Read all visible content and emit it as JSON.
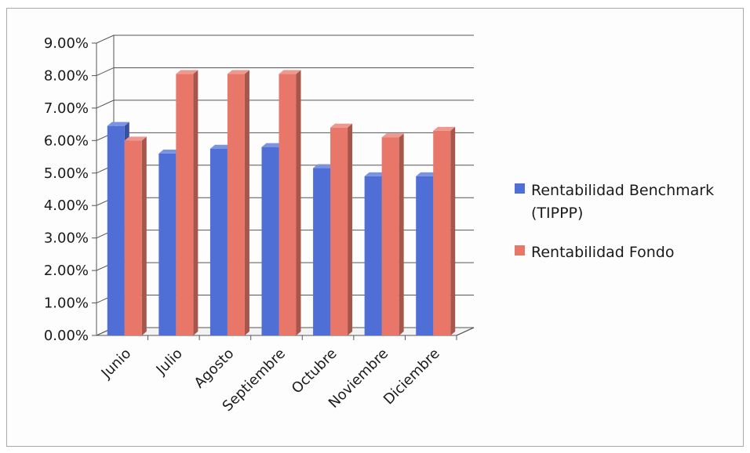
{
  "chart_data": {
    "type": "bar",
    "title": "",
    "xlabel": "",
    "ylabel": "",
    "categories": [
      "Junio",
      "Julio",
      "Agosto",
      "Septiembre",
      "Octubre",
      "Noviembre",
      "Diciembre"
    ],
    "series": [
      {
        "name": "Rentabilidad Benchmark (TIPPP)",
        "legend_lines": [
          "Rentabilidad Benchmark",
          "(TIPPP)"
        ],
        "color": "#4f6fd6",
        "values": [
          0.0645,
          0.056,
          0.0575,
          0.058,
          0.0515,
          0.049,
          0.049
        ]
      },
      {
        "name": "Rentabilidad Fondo",
        "legend_lines": [
          "Rentabilidad Fondo"
        ],
        "color": "#e8776a",
        "values": [
          0.06,
          0.0805,
          0.0805,
          0.0805,
          0.064,
          0.061,
          0.063
        ]
      }
    ],
    "ylim": [
      0,
      0.09
    ],
    "yticks": [
      0,
      0.01,
      0.02,
      0.03,
      0.04,
      0.05,
      0.06,
      0.07,
      0.08,
      0.09
    ],
    "ytick_labels": [
      "0.00%",
      "1.00%",
      "2.00%",
      "3.00%",
      "4.00%",
      "5.00%",
      "6.00%",
      "7.00%",
      "8.00%",
      "9.00%"
    ],
    "grid": true,
    "style": "3d-clustered-column",
    "legend_position": "right"
  }
}
